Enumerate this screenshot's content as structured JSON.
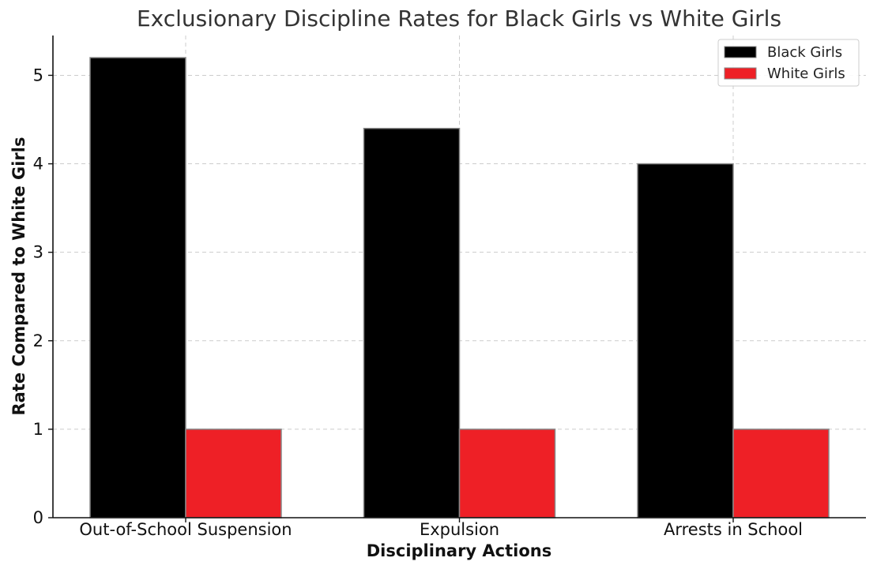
{
  "chart_data": {
    "type": "bar",
    "title": "Exclusionary Discipline Rates for Black Girls vs White Girls",
    "xlabel": "Disciplinary Actions",
    "ylabel": "Rate Compared to White Girls",
    "categories": [
      "Out-of-School Suspension",
      "Expulsion",
      "Arrests in School"
    ],
    "series": [
      {
        "name": "Black Girls",
        "color": "#000000",
        "values": [
          5.2,
          4.4,
          4.0
        ]
      },
      {
        "name": "White Girls",
        "color": "#ee2026",
        "values": [
          1,
          1,
          1
        ]
      }
    ],
    "ylim": [
      0,
      5.45
    ],
    "yticks": [
      0,
      1,
      2,
      3,
      4,
      5
    ],
    "grid": true,
    "legend_position": "top-right"
  }
}
